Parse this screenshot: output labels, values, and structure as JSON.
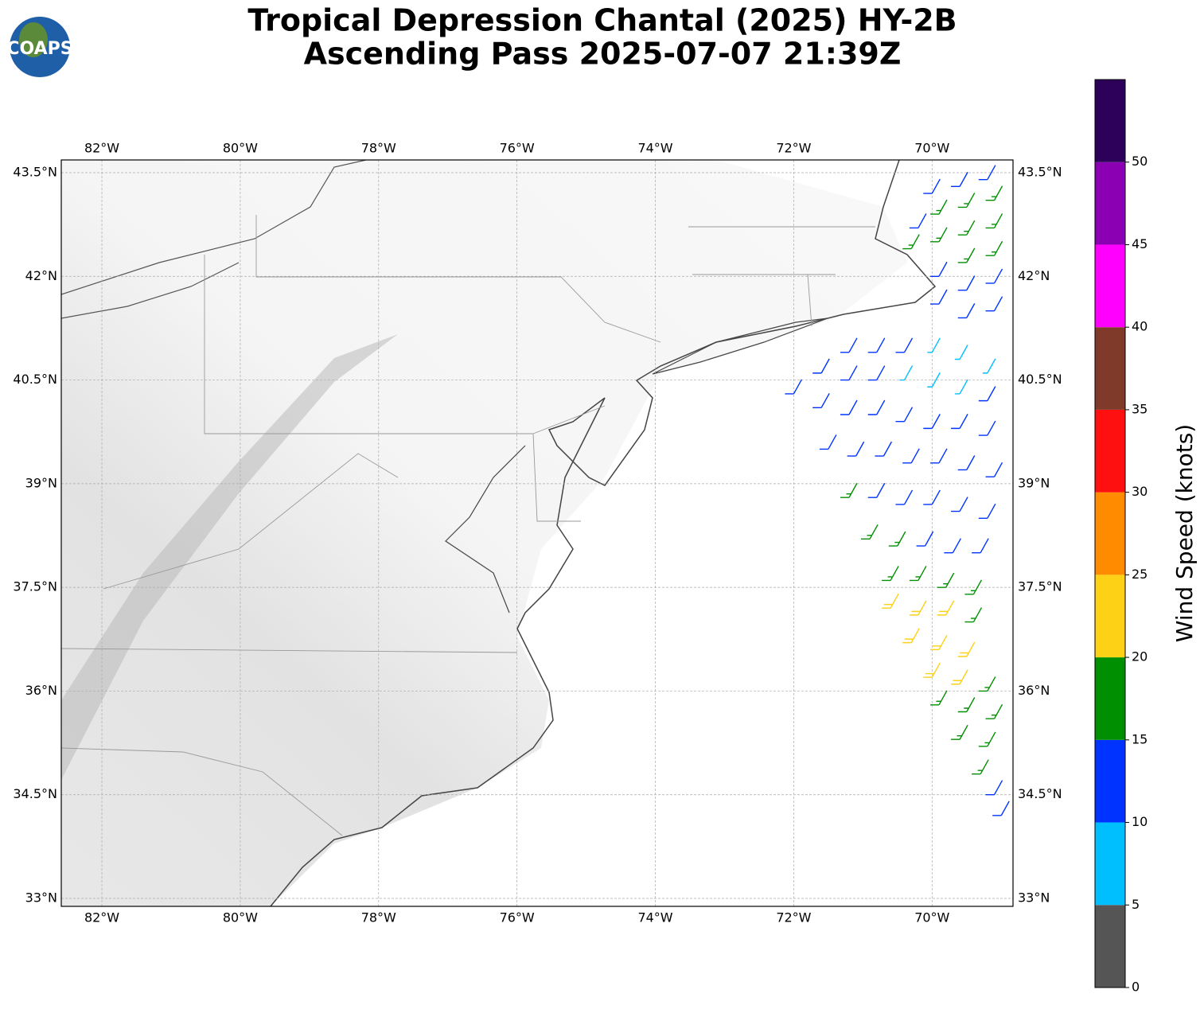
{
  "chart_data": {
    "type": "barb",
    "title": [
      "Tropical Depression Chantal (2025) HY-2B",
      "Ascending Pass 2025-07-07 21:39Z"
    ],
    "logo": "COAPS",
    "xlim": [
      -82.587,
      -68.83
    ],
    "ylim": [
      32.885,
      43.684
    ],
    "xticks": [
      {
        "value": -82,
        "label": "82°W"
      },
      {
        "value": -80,
        "label": "80°W"
      },
      {
        "value": -78,
        "label": "78°W"
      },
      {
        "value": -76,
        "label": "76°W"
      },
      {
        "value": -74,
        "label": "74°W"
      },
      {
        "value": -72,
        "label": "72°W"
      },
      {
        "value": -70,
        "label": "70°W"
      }
    ],
    "yticks": [
      {
        "value": 33,
        "label": "33°N"
      },
      {
        "value": 34.5,
        "label": "34.5°N"
      },
      {
        "value": 36,
        "label": "36°N"
      },
      {
        "value": 37.5,
        "label": "37.5°N"
      },
      {
        "value": 39,
        "label": "39°N"
      },
      {
        "value": 40.5,
        "label": "40.5°N"
      },
      {
        "value": 42,
        "label": "42°N"
      },
      {
        "value": 43.5,
        "label": "43.5°N"
      }
    ],
    "grid": true,
    "colorbar": {
      "label": "Wind Speed (knots)",
      "bounds": [
        0,
        5,
        10,
        15,
        20,
        25,
        30,
        35,
        40,
        45,
        50,
        55
      ],
      "colors": [
        "#555555",
        "#00bfff",
        "#0033ff",
        "#008f00",
        "#fcd116",
        "#ff8c00",
        "#ff1010",
        "#803a2a",
        "#ff00ff",
        "#8b00b3",
        "#2d0059"
      ],
      "ticks": [
        0,
        5,
        10,
        15,
        20,
        25,
        30,
        35,
        40,
        45,
        50
      ]
    },
    "barbs": {
      "lon": [
        -69.2,
        -69.6,
        -70.0,
        -69.1,
        -69.5,
        -69.9,
        -70.2,
        -69.1,
        -69.5,
        -69.9,
        -70.3,
        -69.1,
        -69.5,
        -69.9,
        -69.1,
        -69.5,
        -69.9,
        -69.1,
        -69.5,
        -71.2,
        -70.8,
        -70.4,
        -70.0,
        -69.6,
        -69.2,
        -71.6,
        -71.2,
        -70.8,
        -70.4,
        -70.0,
        -69.6,
        -69.2,
        -72.0,
        -71.6,
        -71.2,
        -70.8,
        -70.4,
        -70.0,
        -69.6,
        -69.2,
        -71.5,
        -71.1,
        -70.7,
        -70.3,
        -69.9,
        -69.5,
        -69.1,
        -71.2,
        -70.8,
        -70.4,
        -70.0,
        -69.6,
        -69.2,
        -70.9,
        -70.5,
        -70.1,
        -69.7,
        -69.3,
        -70.6,
        -70.2,
        -69.8,
        -69.4,
        -70.6,
        -70.2,
        -69.8,
        -69.4,
        -70.3,
        -69.9,
        -69.5,
        -70.0,
        -69.6,
        -69.2,
        -69.9,
        -69.5,
        -69.1,
        -69.6,
        -69.2,
        -69.3,
        -69.1,
        -69.0
      ],
      "lat": [
        43.4,
        43.3,
        43.2,
        43.1,
        43.0,
        42.9,
        42.7,
        42.7,
        42.6,
        42.5,
        42.4,
        42.3,
        42.2,
        42.0,
        41.9,
        41.8,
        41.6,
        41.5,
        41.4,
        40.9,
        40.9,
        40.9,
        40.9,
        40.8,
        40.6,
        40.6,
        40.5,
        40.5,
        40.5,
        40.4,
        40.3,
        40.2,
        40.3,
        40.1,
        40.0,
        40.0,
        39.9,
        39.8,
        39.8,
        39.7,
        39.5,
        39.4,
        39.4,
        39.3,
        39.3,
        39.2,
        39.1,
        38.8,
        38.8,
        38.7,
        38.7,
        38.6,
        38.5,
        38.2,
        38.1,
        38.1,
        38.0,
        38.0,
        37.6,
        37.6,
        37.5,
        37.4,
        37.2,
        37.1,
        37.1,
        37.0,
        36.7,
        36.6,
        36.5,
        36.2,
        36.1,
        36.0,
        35.8,
        35.7,
        35.6,
        35.3,
        35.2,
        34.8,
        34.5,
        34.2
      ],
      "speed": [
        12,
        12,
        12,
        17,
        17,
        17,
        12,
        17,
        17,
        17,
        17,
        17,
        17,
        12,
        12,
        12,
        12,
        12,
        12,
        12,
        12,
        12,
        8,
        8,
        8,
        12,
        12,
        12,
        8,
        8,
        8,
        12,
        12,
        12,
        12,
        12,
        12,
        12,
        12,
        12,
        12,
        12,
        12,
        12,
        12,
        12,
        12,
        17,
        12,
        12,
        12,
        12,
        12,
        17,
        17,
        12,
        12,
        12,
        17,
        17,
        17,
        17,
        22,
        22,
        22,
        17,
        22,
        22,
        22,
        22,
        22,
        17,
        17,
        17,
        17,
        17,
        17,
        17,
        12,
        12
      ]
    }
  }
}
